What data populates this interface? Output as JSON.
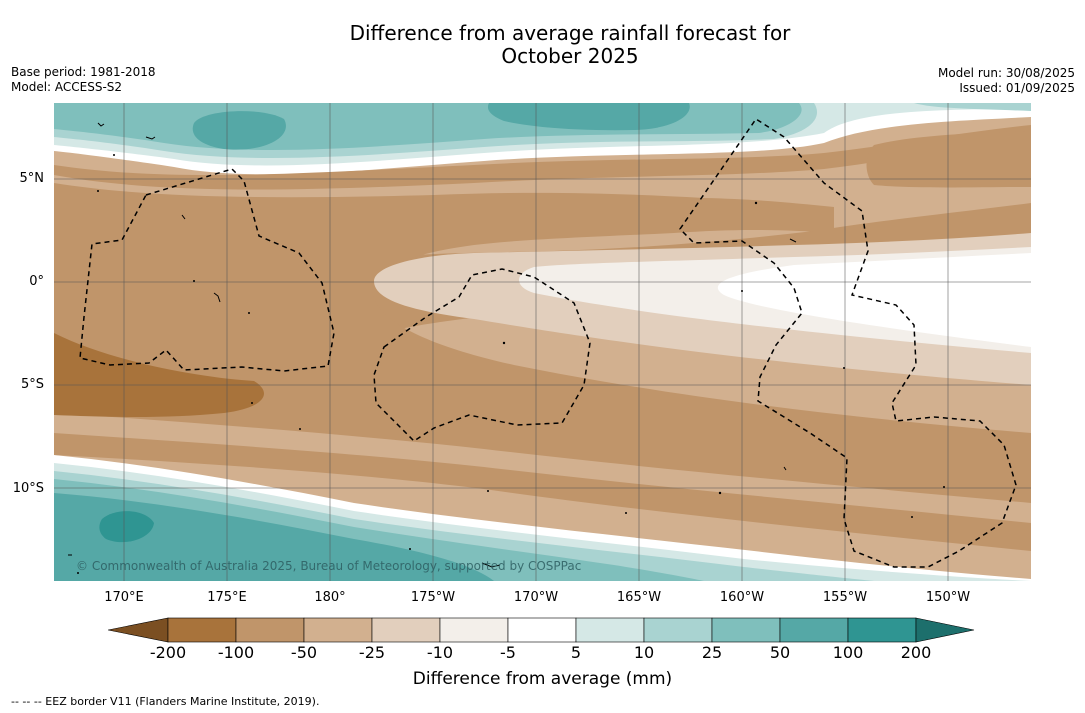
{
  "title_line1": "Difference from average rainfall forecast for",
  "title_line2": "October 2025",
  "base_period": "Base period: 1981-2018",
  "model": "Model: ACCESS-S2",
  "model_run": "Model run: 30/08/2025",
  "issued": "Issued: 01/09/2025",
  "copyright": "© Commonwealth of Australia 2025, Bureau of Meteorology, supported by COSPPac",
  "lat_labels": [
    "5°N",
    "0°",
    "5°S",
    "10°S"
  ],
  "lon_labels": [
    "170°E",
    "175°E",
    "180°",
    "175°W",
    "170°W",
    "165°W",
    "160°W",
    "155°W",
    "150°W"
  ],
  "legend": {
    "title": "Difference from average (mm)",
    "labels": [
      "-200",
      "-100",
      "-50",
      "-25",
      "-10",
      "-5",
      "5",
      "10",
      "25",
      "50",
      "100",
      "200"
    ],
    "colors": [
      "#7b4f22",
      "#a8733b",
      "#c0956a",
      "#d2b08f",
      "#e2cfbd",
      "#f3efea",
      "#ffffff",
      "#d5e8e6",
      "#a9d3d1",
      "#7fbfbc",
      "#55a8a6",
      "#2f9592",
      "#1d6f6c"
    ]
  },
  "eez_note": "--  --  -- EEZ border V11 (Flanders Marine Institute, 2019)."
}
